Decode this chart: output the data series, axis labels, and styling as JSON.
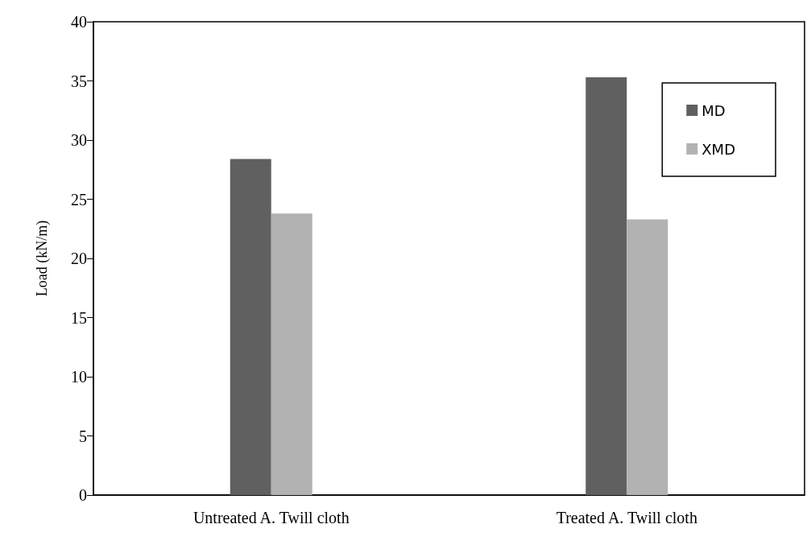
{
  "chart_data": {
    "type": "bar",
    "ylabel": "Load (kN/m)",
    "categories": [
      "Untreated A. Twill cloth",
      "Treated A. Twill cloth"
    ],
    "series": [
      {
        "name": "MD",
        "color": "#606060",
        "values": [
          28.4,
          35.3
        ]
      },
      {
        "name": "XMD",
        "color": "#b2b2b2",
        "values": [
          23.8,
          23.3
        ]
      }
    ],
    "ylim": [
      0,
      40
    ],
    "yticks": [
      0,
      5,
      10,
      15,
      20,
      25,
      30,
      35,
      40
    ],
    "grid": false,
    "legend": "top right"
  }
}
